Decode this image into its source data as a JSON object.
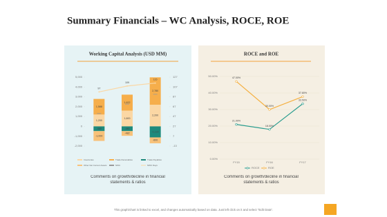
{
  "title": "Summary Financials – WC Analysis, ROCE, ROE",
  "chart_data": [
    {
      "type": "combo",
      "title": "Working Capital Analysis (USD MM)",
      "categories": [
        null,
        null,
        null
      ],
      "ylim": [
        -2000,
        5000
      ],
      "yticks": [
        {
          "value": 5000,
          "label": "5,000"
        },
        {
          "value": 4000,
          "label": "4,000"
        },
        {
          "value": 3000,
          "label": "3,000"
        },
        {
          "value": 2000,
          "label": "2,000"
        },
        {
          "value": 1000,
          "label": "1,000"
        },
        0,
        {
          "value": -1000,
          "label": "-1,000"
        },
        {
          "value": -2000,
          "label": "-2,000"
        }
      ],
      "y2lim": [
        -13,
        127
      ],
      "y2ticks": [
        127,
        107,
        87,
        67,
        47,
        27,
        7,
        -13
      ],
      "series": [
        {
          "name": "Inventories",
          "kind": "bar",
          "color": "#fbd7a4",
          "values": [
            1200,
            1600,
            2200
          ],
          "value_labels": [
            "1,200",
            "1,600",
            "2,200"
          ]
        },
        {
          "name": "Trade Receivables",
          "kind": "bar",
          "color": "#f6ae4b",
          "values": [
            1588,
            1622,
            2780
          ],
          "value_labels": [
            "1,588",
            "1,622",
            "2,780"
          ]
        },
        {
          "name": "Trade Payables",
          "kind": "bar",
          "color": "#1f8a7c",
          "values": [
            -480,
            -480,
            -1122
          ],
          "value_labels": [
            "-480",
            "-480",
            "-1,122"
          ]
        },
        {
          "name": "Other Net Current Assets",
          "kind": "bar",
          "color": "#f8c27a",
          "values": [
            -1000,
            -482,
            -600
          ],
          "value_labels": [
            "-1,000",
            "-482",
            "-600"
          ]
        },
        {
          "name": "NWC",
          "kind": "marker",
          "color": "#9a9a9a",
          "values": [
            1308,
            2260,
            3258
          ]
        },
        {
          "name": "NWC Days",
          "kind": "line",
          "axis": "y2",
          "color": "#fbd7a4",
          "values": [
            97,
            109,
            115
          ]
        }
      ]
    },
    {
      "type": "line",
      "title": "ROCE and ROE",
      "categories": [
        "FY15",
        "FY16",
        "FY17"
      ],
      "ylim": [
        0,
        50
      ],
      "yticks": [
        {
          "value": 50,
          "label": "50.00%"
        },
        {
          "value": 40,
          "label": "40.00%"
        },
        {
          "value": 30,
          "label": "30.00%"
        },
        {
          "value": 20,
          "label": "20.00%"
        },
        {
          "value": 10,
          "label": "10.00%"
        },
        {
          "value": 0,
          "label": "0.00%"
        }
      ],
      "series": [
        {
          "name": "ROCE",
          "color": "#2a9d8f",
          "values": [
            21,
            18,
            33.5
          ],
          "value_labels": [
            "21.00%",
            "18.00%",
            "33.50%"
          ]
        },
        {
          "name": "ROE",
          "color": "#f5b041",
          "values": [
            47,
            30,
            37.8
          ],
          "value_labels": [
            "47.00%",
            "30.00%",
            "37.80%"
          ]
        }
      ]
    }
  ],
  "comments": [
    "Comments on growth/decline in financial statements & ratios",
    "Comments on growth/decline in financial statements & ratios"
  ],
  "footer": "This graph/chart is linked to excel, and changes automatically based on data. Just left click on it and select “Edit Data”."
}
